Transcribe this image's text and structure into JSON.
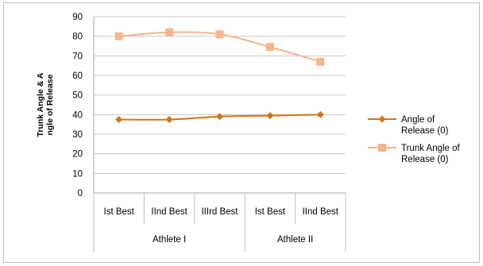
{
  "chart_data": {
    "type": "line",
    "title": "",
    "ylabel": "Trunk Angle & A ngle of Release",
    "ylabel_lines": [
      "Trunk Angle & A",
      "ngle of Release"
    ],
    "xlabel": "",
    "ylim": [
      0,
      90
    ],
    "yticks": [
      0,
      10,
      20,
      30,
      40,
      50,
      60,
      70,
      80,
      90
    ],
    "grid": "horizontal",
    "legend_position": "right",
    "categories": [
      "Ist Best",
      "IInd Best",
      "IIIrd Best",
      "Ist Best",
      "IInd Best"
    ],
    "groups": [
      {
        "name": "Athlete I",
        "count": 3
      },
      {
        "name": "Athlete II",
        "count": 2
      }
    ],
    "series": [
      {
        "name": "Angle of Release (0)",
        "legend_lines": [
          "Angle of",
          "Release (0)"
        ],
        "color": "#d0741d",
        "marker": "diamond",
        "values": [
          37.5,
          37.5,
          39,
          39.5,
          40
        ]
      },
      {
        "name": "Trunk Angle of Release (0)",
        "legend_lines": [
          "Trunk Angle of",
          "Release (0)"
        ],
        "color": "#f8b48a",
        "marker": "square",
        "values": [
          80,
          82,
          81,
          74.5,
          67
        ]
      }
    ]
  }
}
